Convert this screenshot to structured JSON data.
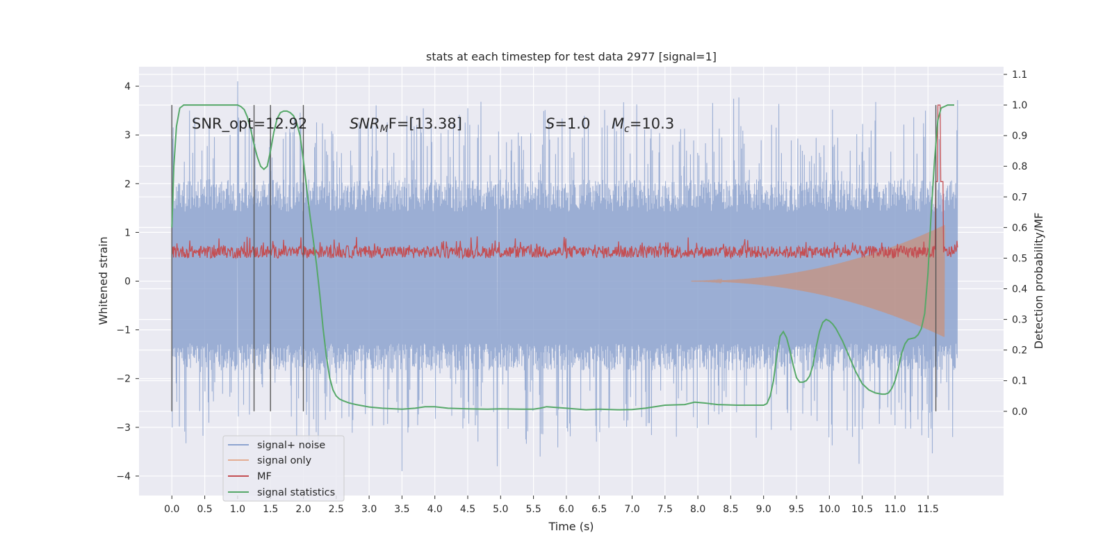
{
  "chart_data": {
    "type": "line",
    "title": "stats at each timestep for test data 2977 [signal=1]",
    "xlabel": "Time (s)",
    "ylabel_left": "Whitened strain",
    "ylabel_right": "Detection probability/MF",
    "xlim": [
      -0.5,
      12.65
    ],
    "ylim_left": [
      -4.4,
      4.4
    ],
    "ylim_right": [
      -0.275,
      1.125
    ],
    "x_ticks": [
      "0.0",
      "0.5",
      "1.0",
      "1.5",
      "2.0",
      "2.5",
      "3.0",
      "3.5",
      "4.0",
      "4.5",
      "5.0",
      "5.5",
      "6.0",
      "6.5",
      "7.0",
      "7.5",
      "8.0",
      "8.5",
      "9.0",
      "9.5",
      "10.0",
      "10.5",
      "11.0",
      "11.5"
    ],
    "y_ticks_left": [
      "−4",
      "−3",
      "−2",
      "−1",
      "0",
      "1",
      "2",
      "3",
      "4"
    ],
    "y_ticks_right": [
      "0.0",
      "0.1",
      "0.2",
      "0.3",
      "0.4",
      "0.5",
      "0.6",
      "0.7",
      "0.8",
      "0.9",
      "1.0",
      "1.1"
    ],
    "grid": true,
    "legend_position": "lower-left",
    "annotations": {
      "snr_opt": "SNR_opt=12.92",
      "snr_mf_sym": "SNR",
      "snr_mf_sub": "M",
      "snr_mf_rest": "F=[13.38]",
      "s_sym": "S",
      "s_rest": "=1.0",
      "mc_sym": "M",
      "mc_sub": "c",
      "mc_rest": "=10.3"
    },
    "vertical_lines": [
      0.0,
      1.25,
      1.5,
      2.0,
      11.62
    ],
    "series": [
      {
        "name": "signal+ noise",
        "color": "#8da3cf",
        "axis": "left",
        "duration": [
          0.0,
          11.95
        ],
        "envelope_typical": [
          -1.6,
          1.9
        ],
        "extremes": [
          [
            1.0,
            4.1
          ],
          [
            3.5,
            -3.9
          ],
          [
            4.95,
            -3.8
          ],
          [
            10.45,
            -3.75
          ],
          [
            5.6,
            -3.6
          ],
          [
            4.5,
            3.55
          ],
          [
            0.27,
            3.5
          ]
        ]
      },
      {
        "name": "signal only",
        "color": "#dd8452",
        "axis": "left",
        "chirp_start": 7.9,
        "chirp_end": 11.75,
        "peak_amplitude": 1.1
      },
      {
        "name": "MF",
        "color": "#c44e52",
        "axis": "right",
        "baseline": 0.5,
        "noise_range": [
          0.5,
          0.54
        ],
        "peak": [
          11.67,
          1.0
        ]
      },
      {
        "name": "signal statistics",
        "color": "#55a868",
        "axis": "right",
        "x": [
          0.0,
          0.03,
          0.07,
          0.12,
          0.18,
          0.25,
          0.4,
          0.6,
          0.8,
          0.95,
          1.0,
          1.05,
          1.1,
          1.15,
          1.2,
          1.25,
          1.3,
          1.35,
          1.4,
          1.45,
          1.5,
          1.55,
          1.6,
          1.65,
          1.7,
          1.75,
          1.8,
          1.85,
          1.9,
          1.95,
          2.0,
          2.05,
          2.1,
          2.15,
          2.2,
          2.25,
          2.3,
          2.35,
          2.4,
          2.45,
          2.5,
          2.55,
          2.6,
          2.7,
          2.8,
          3.0,
          3.2,
          3.5,
          3.7,
          3.85,
          4.0,
          4.2,
          4.5,
          4.8,
          5.0,
          5.3,
          5.5,
          5.6,
          5.7,
          6.0,
          6.3,
          6.5,
          6.8,
          7.0,
          7.2,
          7.5,
          7.8,
          7.95,
          8.1,
          8.3,
          8.6,
          9.0,
          9.05,
          9.1,
          9.15,
          9.2,
          9.25,
          9.3,
          9.35,
          9.4,
          9.45,
          9.5,
          9.55,
          9.6,
          9.65,
          9.7,
          9.75,
          9.8,
          9.85,
          9.9,
          9.95,
          10.0,
          10.05,
          10.1,
          10.2,
          10.3,
          10.4,
          10.5,
          10.6,
          10.7,
          10.8,
          10.85,
          10.9,
          10.95,
          11.0,
          11.05,
          11.1,
          11.15,
          11.2,
          11.3,
          11.35,
          11.4,
          11.45,
          11.5,
          11.55,
          11.6,
          11.65,
          11.7,
          11.8,
          11.9
        ],
        "y": [
          0.6,
          0.8,
          0.93,
          0.99,
          1.0,
          1.0,
          1.0,
          1.0,
          1.0,
          1.0,
          1.0,
          0.995,
          0.985,
          0.96,
          0.92,
          0.87,
          0.83,
          0.8,
          0.79,
          0.8,
          0.85,
          0.91,
          0.955,
          0.975,
          0.98,
          0.98,
          0.975,
          0.965,
          0.94,
          0.9,
          0.82,
          0.73,
          0.64,
          0.56,
          0.48,
          0.38,
          0.27,
          0.18,
          0.11,
          0.07,
          0.05,
          0.04,
          0.035,
          0.027,
          0.022,
          0.014,
          0.01,
          0.007,
          0.01,
          0.015,
          0.015,
          0.01,
          0.008,
          0.007,
          0.008,
          0.007,
          0.007,
          0.01,
          0.015,
          0.01,
          0.005,
          0.007,
          0.005,
          0.006,
          0.01,
          0.02,
          0.022,
          0.03,
          0.027,
          0.022,
          0.02,
          0.02,
          0.025,
          0.05,
          0.1,
          0.18,
          0.245,
          0.26,
          0.24,
          0.2,
          0.15,
          0.11,
          0.095,
          0.095,
          0.1,
          0.115,
          0.15,
          0.21,
          0.26,
          0.29,
          0.3,
          0.295,
          0.285,
          0.27,
          0.23,
          0.18,
          0.13,
          0.09,
          0.07,
          0.06,
          0.056,
          0.056,
          0.06,
          0.075,
          0.1,
          0.14,
          0.19,
          0.22,
          0.235,
          0.24,
          0.25,
          0.27,
          0.32,
          0.45,
          0.65,
          0.82,
          0.95,
          0.99,
          1.0,
          1.0
        ]
      }
    ]
  }
}
